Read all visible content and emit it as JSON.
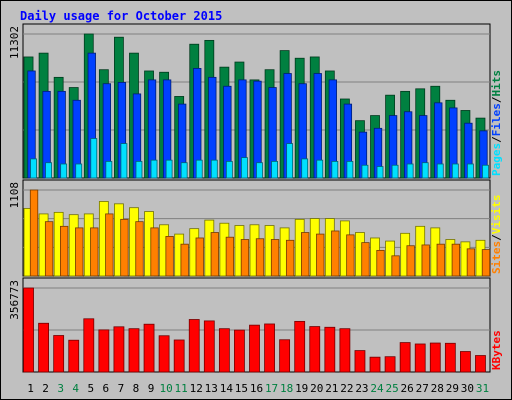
{
  "page": {
    "background": "#c0c0c0",
    "title": "Daily usage for October 2015"
  },
  "colors": {
    "title": "#0000ff",
    "hits": "#008040",
    "files": "#0040ff",
    "pages": "#00e0ff",
    "visits": "#ffff00",
    "sites": "#ff8000",
    "kbytes": "#ff0000",
    "weekend_day_label": "#008040",
    "weekday_day_label": "#000000",
    "panel_bg": "#c0c0c0",
    "gridline": "#808080"
  },
  "chart_data": [
    {
      "type": "bar",
      "panel": "hits-files-pages",
      "ylabel": "11302",
      "ylim": [
        0,
        11302
      ],
      "grid": true,
      "legend_labels": [
        "Pages",
        "Files",
        "Hits"
      ],
      "legend_separator": "/",
      "categories": [
        "1",
        "2",
        "3",
        "4",
        "5",
        "6",
        "7",
        "8",
        "9",
        "10",
        "11",
        "12",
        "13",
        "14",
        "15",
        "16",
        "17",
        "18",
        "19",
        "20",
        "21",
        "22",
        "23",
        "24",
        "25",
        "26",
        "27",
        "28",
        "29",
        "30",
        "31"
      ],
      "series": [
        {
          "name": "Hits",
          "color_key": "hits",
          "values": [
            9500,
            9800,
            7900,
            7100,
            11302,
            8500,
            11050,
            9800,
            8400,
            8300,
            6400,
            10500,
            10800,
            8700,
            9100,
            7700,
            8500,
            10000,
            9400,
            9500,
            8400,
            6200,
            4500,
            4900,
            6500,
            6800,
            7000,
            7200,
            6100,
            5300,
            4700
          ]
        },
        {
          "name": "Files",
          "color_key": "files",
          "values": [
            8400,
            6800,
            6800,
            6100,
            9800,
            7400,
            7500,
            6600,
            7700,
            7700,
            5800,
            8600,
            7900,
            7200,
            7700,
            7600,
            7100,
            8200,
            7400,
            8200,
            7700,
            5800,
            3600,
            3900,
            4900,
            5200,
            4900,
            5900,
            5500,
            4300,
            3700
          ]
        },
        {
          "name": "Pages",
          "color_key": "pages",
          "values": [
            1500,
            1200,
            1100,
            1100,
            3100,
            1300,
            2700,
            1300,
            1400,
            1400,
            1200,
            1400,
            1400,
            1300,
            1600,
            1200,
            1300,
            2700,
            1500,
            1400,
            1300,
            1300,
            1000,
            900,
            1000,
            1100,
            1200,
            1100,
            1100,
            1100,
            1000
          ]
        }
      ]
    },
    {
      "type": "bar",
      "panel": "visits-sites",
      "ylabel": "1108",
      "ylim": [
        0,
        1108
      ],
      "grid": true,
      "legend_labels": [
        "Sites",
        "Visits"
      ],
      "legend_separator": "/",
      "categories": [
        "1",
        "2",
        "3",
        "4",
        "5",
        "6",
        "7",
        "8",
        "9",
        "10",
        "11",
        "12",
        "13",
        "14",
        "15",
        "16",
        "17",
        "18",
        "19",
        "20",
        "21",
        "22",
        "23",
        "24",
        "25",
        "26",
        "27",
        "28",
        "29",
        "30",
        "31"
      ],
      "series": [
        {
          "name": "Visits",
          "color_key": "visits",
          "values": [
            870,
            800,
            820,
            790,
            800,
            960,
            930,
            880,
            830,
            660,
            540,
            610,
            720,
            680,
            650,
            660,
            650,
            620,
            730,
            740,
            740,
            710,
            560,
            490,
            450,
            550,
            640,
            620,
            470,
            440,
            460
          ]
        },
        {
          "name": "Sites",
          "color_key": "sites",
          "values": [
            1108,
            700,
            640,
            620,
            620,
            800,
            730,
            700,
            620,
            510,
            410,
            490,
            560,
            500,
            470,
            480,
            470,
            460,
            560,
            540,
            580,
            530,
            430,
            330,
            260,
            390,
            400,
            410,
            410,
            350,
            340
          ]
        }
      ]
    },
    {
      "type": "bar",
      "panel": "kbytes",
      "ylabel": "356773",
      "ylim": [
        0,
        356773
      ],
      "grid": true,
      "legend_labels": [
        "KBytes"
      ],
      "categories": [
        "1",
        "2",
        "3",
        "4",
        "5",
        "6",
        "7",
        "8",
        "9",
        "10",
        "11",
        "12",
        "13",
        "14",
        "15",
        "16",
        "17",
        "18",
        "19",
        "20",
        "21",
        "22",
        "23",
        "24",
        "25",
        "26",
        "27",
        "28",
        "29",
        "30",
        "31"
      ],
      "series": [
        {
          "name": "KBytes",
          "color_key": "kbytes",
          "values": [
            356773,
            207000,
            155000,
            135000,
            226000,
            179000,
            192000,
            184000,
            203000,
            154000,
            136000,
            223000,
            217000,
            184000,
            178000,
            199000,
            204000,
            137000,
            215000,
            193000,
            190000,
            184000,
            91000,
            63000,
            65000,
            125000,
            119000,
            123000,
            122000,
            87000,
            70000
          ]
        }
      ]
    }
  ],
  "x_axis": {
    "labels": [
      "1",
      "2",
      "3",
      "4",
      "5",
      "6",
      "7",
      "8",
      "9",
      "10",
      "11",
      "12",
      "13",
      "14",
      "15",
      "16",
      "17",
      "18",
      "19",
      "20",
      "21",
      "22",
      "23",
      "24",
      "25",
      "26",
      "27",
      "28",
      "29",
      "30",
      "31"
    ],
    "weekend_days": [
      "3",
      "4",
      "10",
      "11",
      "17",
      "18",
      "24",
      "25",
      "31"
    ]
  }
}
